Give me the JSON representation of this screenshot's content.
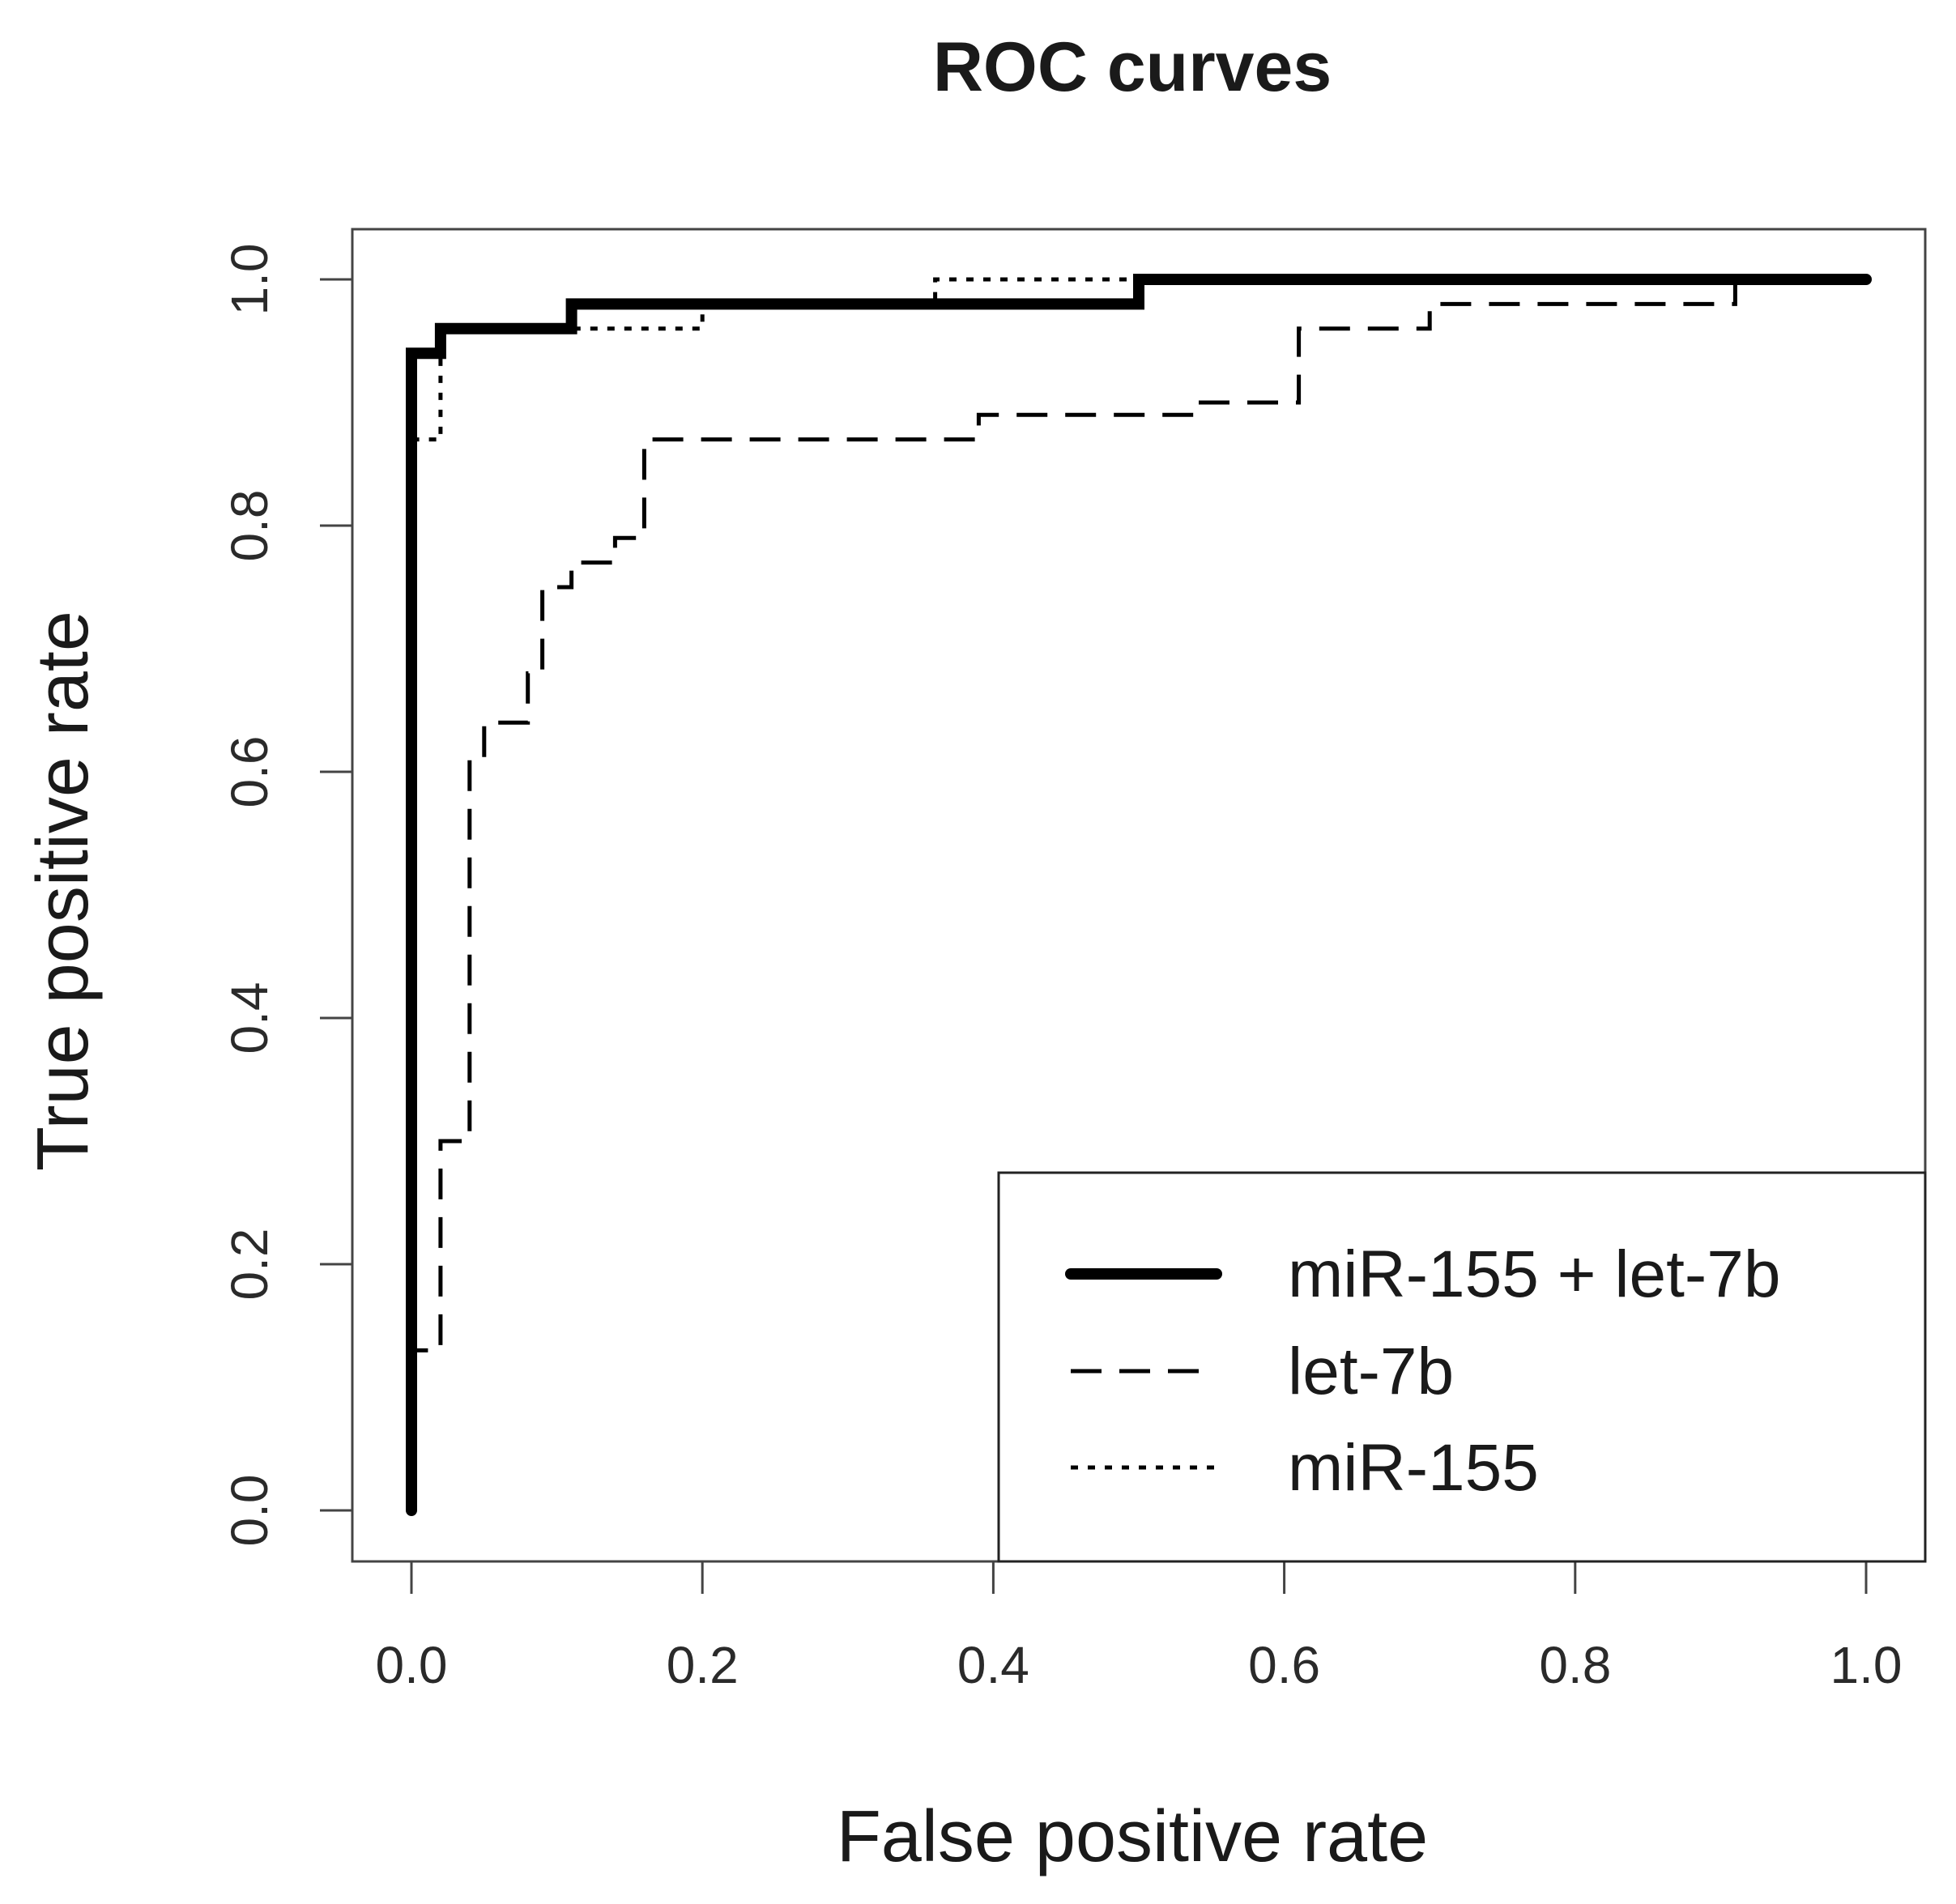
{
  "chart_data": {
    "type": "line",
    "title": "ROC curves",
    "xlabel": "False positive rate",
    "ylabel": "True positive rate",
    "xlim": [
      0.0,
      1.0
    ],
    "ylim": [
      0.0,
      1.0
    ],
    "xticks": [
      0.0,
      0.2,
      0.4,
      0.6,
      0.8,
      1.0
    ],
    "yticks": [
      0.0,
      0.2,
      0.4,
      0.6,
      0.8,
      1.0
    ],
    "tick_labels": [
      "0.0",
      "0.2",
      "0.4",
      "0.6",
      "0.8",
      "1.0"
    ],
    "grid": false,
    "legend_position": "bottom-right",
    "series": [
      {
        "name": "miR-155 + let-7b",
        "style": "solid-thick",
        "color": "#000000",
        "x": [
          0.0,
          0.0,
          0.02,
          0.02,
          0.11,
          0.11,
          0.5,
          0.5,
          1.0
        ],
        "y": [
          0.0,
          0.94,
          0.94,
          0.96,
          0.96,
          0.98,
          0.98,
          1.0,
          1.0
        ]
      },
      {
        "name": "let-7b",
        "style": "dashed",
        "color": "#000000",
        "x": [
          0.0,
          0.0,
          0.02,
          0.02,
          0.04,
          0.04,
          0.05,
          0.05,
          0.08,
          0.08,
          0.09,
          0.09,
          0.11,
          0.11,
          0.14,
          0.14,
          0.16,
          0.16,
          0.39,
          0.39,
          0.54,
          0.54,
          0.61,
          0.61,
          0.7,
          0.7,
          0.91,
          0.91,
          1.0
        ],
        "y": [
          0.0,
          0.13,
          0.13,
          0.3,
          0.3,
          0.61,
          0.61,
          0.64,
          0.64,
          0.68,
          0.68,
          0.75,
          0.75,
          0.77,
          0.77,
          0.79,
          0.79,
          0.87,
          0.87,
          0.89,
          0.89,
          0.9,
          0.9,
          0.96,
          0.96,
          0.98,
          0.98,
          1.0,
          1.0
        ]
      },
      {
        "name": "miR-155",
        "style": "dotted",
        "color": "#000000",
        "x": [
          0.0,
          0.0,
          0.01,
          0.01,
          0.02,
          0.02,
          0.11,
          0.11,
          0.2,
          0.2,
          0.36,
          0.36,
          1.0
        ],
        "y": [
          0.0,
          0.87,
          0.87,
          0.87,
          0.87,
          0.96,
          0.96,
          0.96,
          0.96,
          0.98,
          0.98,
          1.0,
          1.0
        ]
      }
    ]
  }
}
